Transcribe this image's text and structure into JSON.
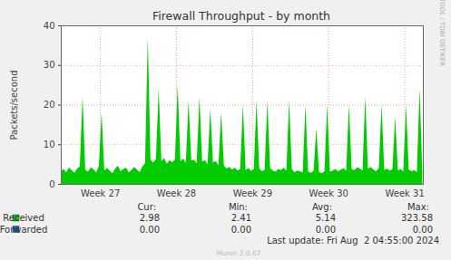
{
  "chart_data": {
    "type": "area",
    "title": "Firewall Throughput - by month",
    "y_label": "Packets/second",
    "x": [
      0,
      0.25,
      0.5,
      0.75,
      1,
      1.25,
      1.5,
      1.75,
      2,
      2.25,
      2.5,
      2.75,
      3,
      3.25,
      3.5,
      3.75,
      4,
      4.25,
      4.5,
      4.75,
      5,
      5.25,
      5.5,
      5.75,
      6,
      6.25,
      6.5,
      6.75,
      7,
      7.25,
      7.5,
      7.75,
      8,
      8.25,
      8.5,
      8.75,
      9,
      9.25,
      9.5,
      9.75,
      10,
      10.25,
      10.5,
      10.75,
      11,
      11.25,
      11.5,
      11.75,
      12,
      12.25,
      12.5,
      12.75,
      13,
      13.25,
      13.5,
      13.75,
      14,
      14.25,
      14.5,
      14.75,
      15,
      15.25,
      15.5,
      15.75,
      16,
      16.25,
      16.5,
      16.75,
      17,
      17.25,
      17.5,
      17.75,
      18,
      18.25,
      18.5,
      18.75,
      19,
      19.25,
      19.5,
      19.75,
      20,
      20.25,
      20.5,
      20.75,
      21,
      21.25,
      21.5,
      21.75,
      22,
      22.25,
      22.5,
      22.75,
      23,
      23.25,
      23.5,
      23.75,
      24,
      24.25,
      24.5,
      24.75,
      25,
      25.25,
      25.5,
      25.75,
      26,
      26.25,
      26.5,
      26.75,
      27,
      27.25,
      27.5,
      27.75,
      28,
      28.25,
      28.5,
      28.75,
      29,
      29.25,
      29.5,
      29.75,
      30,
      30.25,
      30.5,
      30.75,
      31,
      31.25,
      31.5,
      31.75,
      32,
      32.25,
      32.5,
      32.75,
      33,
      33.25
    ],
    "xlim": [
      0,
      33.3
    ],
    "xticks": [
      {
        "value": 3.6,
        "label": "Week 27"
      },
      {
        "value": 10.6,
        "label": "Week 28"
      },
      {
        "value": 17.6,
        "label": "Week 29"
      },
      {
        "value": 24.6,
        "label": "Week 30"
      },
      {
        "value": 31.6,
        "label": "Week 31"
      }
    ],
    "ylim": [
      0,
      40
    ],
    "yticks": [
      0,
      10,
      20,
      30,
      40
    ],
    "grid": true,
    "series": [
      {
        "name": "Received",
        "color": "#00cc00",
        "type": "area",
        "values": [
          3.2,
          3.8,
          2.9,
          4.1,
          3.5,
          2.8,
          3.9,
          4.4,
          22,
          3.6,
          3.1,
          4.2,
          3.7,
          2.9,
          4.5,
          18,
          3.4,
          4.0,
          3.3,
          2.7,
          3.9,
          4.6,
          3.2,
          3.8,
          4.1,
          2.9,
          3.5,
          4.3,
          3.6,
          3.0,
          4.4,
          5.2,
          37,
          6.1,
          5.4,
          6.3,
          24,
          5.8,
          6.5,
          5.1,
          6.0,
          5.5,
          6.2,
          25,
          5.7,
          6.4,
          5.3,
          21,
          5.9,
          6.1,
          5.2,
          22,
          5.6,
          6.0,
          4.9,
          19,
          5.4,
          5.8,
          4.7,
          18,
          4.6,
          3.9,
          4.3,
          3.6,
          4.1,
          3.4,
          3.8,
          20,
          3.5,
          4.0,
          3.3,
          3.7,
          21,
          3.9,
          3.2,
          3.6,
          21,
          4.0,
          3.4,
          3.1,
          3.8,
          3.5,
          4.1,
          3.3,
          21,
          3.7,
          3.0,
          3.4,
          3.2,
          2.9,
          20,
          3.1,
          2.8,
          3.3,
          14,
          3.0,
          2.7,
          3.2,
          20,
          3.1,
          3.4,
          3.8,
          3.2,
          3.6,
          4.0,
          3.3,
          20,
          3.7,
          3.5,
          4.2,
          3.9,
          3.4,
          22,
          3.8,
          4.3,
          3.6,
          3.2,
          4.0,
          20,
          3.5,
          3.9,
          3.3,
          3.7,
          17,
          3.4,
          3.8,
          3.1,
          20,
          3.6,
          3.2,
          3.5,
          3.0,
          24,
          2.98
        ]
      },
      {
        "name": "Forwarded",
        "color": "#0066b3",
        "type": "line",
        "values": [
          0,
          0,
          0,
          0,
          0,
          0,
          0,
          0,
          0,
          0,
          0,
          0,
          0,
          0,
          0,
          0,
          0,
          0,
          0,
          0,
          0,
          0,
          0,
          0,
          0,
          0,
          0,
          0,
          0,
          0,
          0,
          0,
          0,
          0,
          0,
          0,
          0,
          0,
          0,
          0,
          0,
          0,
          0,
          0,
          0,
          0,
          0,
          0,
          0,
          0,
          0,
          0,
          0,
          0,
          0,
          0,
          0,
          0,
          0,
          0,
          0,
          0,
          0,
          0,
          0,
          0,
          0,
          0,
          0,
          0,
          0,
          0,
          0,
          0,
          0,
          0,
          0,
          0,
          0,
          0,
          0,
          0,
          0,
          0,
          0,
          0,
          0,
          0,
          0,
          0,
          0,
          0,
          0,
          0,
          0,
          0,
          0,
          0,
          0,
          0,
          0,
          0,
          0,
          0,
          0,
          0,
          0,
          0,
          0,
          0,
          0,
          0,
          0,
          0,
          0,
          0,
          0,
          0,
          0,
          0,
          0,
          0,
          0,
          0,
          0,
          0,
          0,
          0,
          0,
          0,
          0,
          0,
          0,
          0
        ]
      }
    ],
    "stats": {
      "columns": [
        "Cur:",
        "Min:",
        "Avg:",
        "Max:"
      ],
      "rows": [
        {
          "name": "Received",
          "values": [
            "2.98",
            "2.41",
            "5.14",
            "323.58"
          ]
        },
        {
          "name": "Forwarded",
          "values": [
            "0.00",
            "0.00",
            "0.00",
            "0.00"
          ]
        }
      ]
    },
    "footer": "Last update: Fri Aug  2 04:55:00 2024",
    "credit": "Munin 2.0.67",
    "watermark": "RRDTOOL / TOBI OETIKER"
  }
}
